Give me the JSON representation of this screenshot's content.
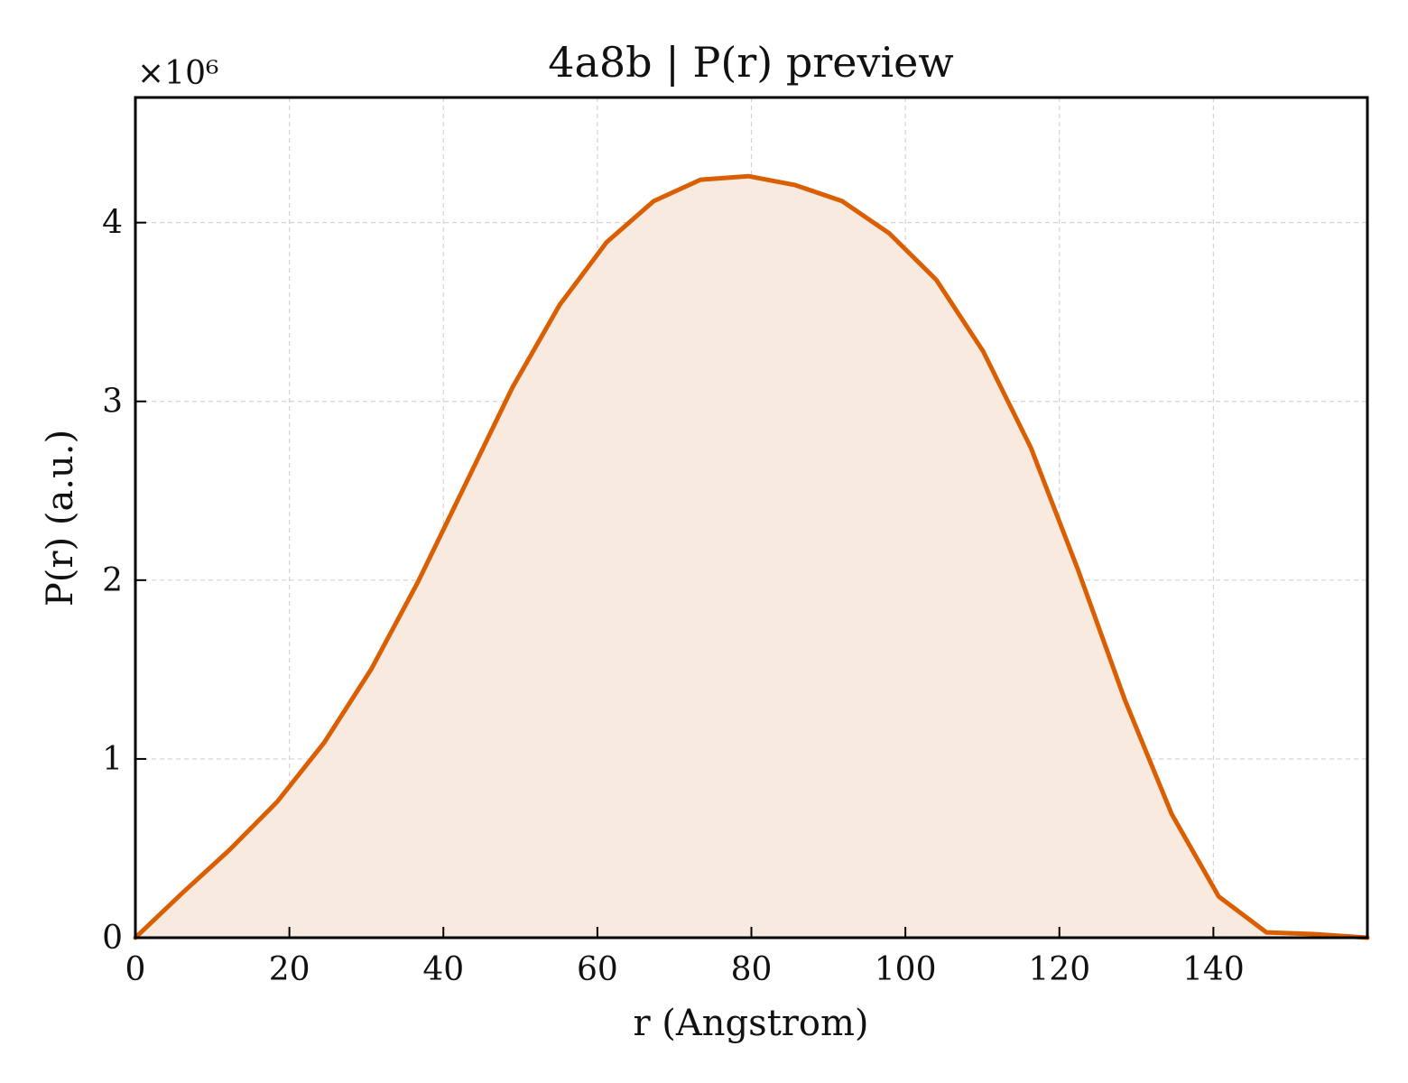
{
  "chart_data": {
    "type": "area",
    "title": "4a8b | P(r) preview",
    "xlabel": "r (Angstrom)",
    "ylabel": "P(r) (a.u.)",
    "y_multiplier_label": "×10⁶",
    "xlim": [
      0,
      160
    ],
    "ylim": [
      0,
      4.7
    ],
    "x_ticks": [
      0,
      20,
      40,
      60,
      80,
      100,
      120,
      140
    ],
    "y_ticks": [
      0,
      1,
      2,
      3,
      4
    ],
    "grid": true,
    "line_color": "#d95f02",
    "fill_color": "#f9eadf",
    "series": [
      {
        "x": [
          0,
          6.1,
          12.2,
          18.4,
          24.5,
          30.6,
          36.7,
          42.8,
          49.0,
          55.1,
          61.2,
          67.3,
          73.4,
          79.6,
          85.7,
          91.8,
          97.9,
          104.0,
          110.1,
          116.3,
          122.4,
          128.5,
          134.6,
          140.7,
          146.9,
          153.0,
          160.0
        ],
        "y": [
          0,
          0.25,
          0.49,
          0.76,
          1.09,
          1.5,
          1.99,
          2.53,
          3.08,
          3.54,
          3.89,
          4.12,
          4.24,
          4.26,
          4.21,
          4.12,
          3.94,
          3.68,
          3.28,
          2.74,
          2.06,
          1.33,
          0.69,
          0.23,
          0.03,
          0.02,
          0.0
        ]
      }
    ]
  }
}
